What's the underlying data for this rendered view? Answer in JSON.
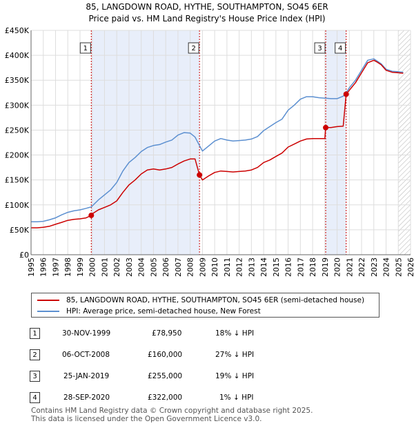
{
  "title_line1": "85, LANGDOWN ROAD, HYTHE, SOUTHAMPTON, SO45 6ER",
  "title_line2": "Price paid vs. HM Land Registry's House Price Index (HPI)",
  "legend": {
    "property_label": "85, LANGDOWN ROAD, HYTHE, SOUTHAMPTON, SO45 6ER (semi-detached house)",
    "hpi_label": "HPI: Average price, semi-detached house, New Forest"
  },
  "transactions": [
    {
      "num": "1",
      "date": "30-NOV-1999",
      "price": "£78,950",
      "hpi": "18% ↓ HPI"
    },
    {
      "num": "2",
      "date": "06-OCT-2008",
      "price": "£160,000",
      "hpi": "27% ↓ HPI"
    },
    {
      "num": "3",
      "date": "25-JAN-2019",
      "price": "£255,000",
      "hpi": "19% ↓ HPI"
    },
    {
      "num": "4",
      "date": "28-SEP-2020",
      "price": "£322,000",
      "hpi": "1% ↓ HPI"
    }
  ],
  "footer_line1": "Contains HM Land Registry data © Crown copyright and database right 2025.",
  "footer_line2": "This data is licensed under the Open Government Licence v3.0.",
  "colors": {
    "property": "#cc0000",
    "hpi": "#5b8fd0",
    "shade": "#e8eefa",
    "marker_line": "#cc0000",
    "hatch": "#cccccc"
  },
  "chart_data": {
    "type": "line",
    "xlim": [
      1995,
      2026
    ],
    "ylim": [
      0,
      450000
    ],
    "x_ticks": [
      1995,
      1996,
      1997,
      1998,
      1999,
      2000,
      2001,
      2002,
      2003,
      2004,
      2005,
      2006,
      2007,
      2008,
      2009,
      2010,
      2011,
      2012,
      2013,
      2014,
      2015,
      2016,
      2017,
      2018,
      2019,
      2020,
      2021,
      2022,
      2023,
      2024,
      2025,
      2026
    ],
    "y_ticks": [
      0,
      50000,
      100000,
      150000,
      200000,
      250000,
      300000,
      350000,
      400000,
      450000
    ],
    "y_tick_labels": [
      "£0",
      "£50K",
      "£100K",
      "£150K",
      "£200K",
      "£250K",
      "£300K",
      "£350K",
      "£400K",
      "£450K"
    ],
    "shaded_periods": [
      [
        1999.92,
        2008.76
      ],
      [
        2019.07,
        2020.74
      ]
    ],
    "hatch_from": 2025.0,
    "sales": [
      {
        "label": "1",
        "x": 1999.92,
        "y": 78950
      },
      {
        "label": "2",
        "x": 2008.76,
        "y": 160000
      },
      {
        "label": "3",
        "x": 2019.07,
        "y": 255000
      },
      {
        "label": "4",
        "x": 2020.74,
        "y": 322000
      }
    ],
    "series": [
      {
        "name": "HPI: Average price, semi-detached house, New Forest",
        "x": [
          1995,
          1995.5,
          1996,
          1996.5,
          1997,
          1997.5,
          1998,
          1998.5,
          1999,
          1999.5,
          1999.92,
          2000.5,
          2001,
          2001.5,
          2002,
          2002.5,
          2003,
          2003.5,
          2004,
          2004.5,
          2005,
          2005.5,
          2006,
          2006.5,
          2007,
          2007.5,
          2008,
          2008.4,
          2008.76,
          2009,
          2009.5,
          2010,
          2010.5,
          2011,
          2011.5,
          2012,
          2012.5,
          2013,
          2013.5,
          2014,
          2014.5,
          2015,
          2015.5,
          2016,
          2016.5,
          2017,
          2017.5,
          2018,
          2018.5,
          2019,
          2019.07,
          2019.5,
          2020,
          2020.5,
          2020.74,
          2021,
          2021.5,
          2022,
          2022.5,
          2023,
          2023.3,
          2023.6,
          2024,
          2024.5,
          2025,
          2025.4
        ],
        "values": [
          66000,
          66000,
          67000,
          70000,
          74000,
          80000,
          85000,
          88000,
          90000,
          93000,
          96000,
          110000,
          120000,
          130000,
          145000,
          168000,
          185000,
          195000,
          207000,
          215000,
          219000,
          221000,
          226000,
          230000,
          240000,
          245000,
          244000,
          236000,
          219000,
          208000,
          218000,
          228000,
          233000,
          230000,
          228000,
          229000,
          230000,
          232000,
          237000,
          249000,
          257000,
          265000,
          272000,
          290000,
          300000,
          312000,
          317000,
          317000,
          315000,
          314000,
          314000,
          313000,
          313000,
          318000,
          325000,
          335000,
          350000,
          370000,
          390000,
          393000,
          388000,
          383000,
          372000,
          368000,
          367000,
          366000
        ]
      },
      {
        "name": "85, LANGDOWN ROAD, HYTHE, SOUTHAMPTON, SO45 6ER (semi-detached house)",
        "x": [
          1995,
          1995.5,
          1996,
          1996.5,
          1997,
          1997.5,
          1998,
          1998.5,
          1999,
          1999.5,
          1999.92,
          2000,
          2000.5,
          2001,
          2001.5,
          2002,
          2002.5,
          2003,
          2003.5,
          2004,
          2004.5,
          2005,
          2005.5,
          2006,
          2006.5,
          2007,
          2007.5,
          2008,
          2008.4,
          2008.76,
          2009,
          2009.5,
          2010,
          2010.5,
          2011,
          2011.5,
          2012,
          2012.5,
          2013,
          2013.5,
          2014,
          2014.5,
          2015,
          2015.5,
          2016,
          2016.5,
          2017,
          2017.5,
          2018,
          2018.5,
          2019,
          2019.07,
          2019.5,
          2020,
          2020.5,
          2020.74,
          2021,
          2021.5,
          2022,
          2022.5,
          2023,
          2023.3,
          2023.6,
          2024,
          2024.5,
          2025,
          2025.4
        ],
        "values": [
          54000,
          54000,
          55000,
          57000,
          61000,
          65000,
          69000,
          71000,
          72000,
          74000,
          78950,
          82000,
          90000,
          95000,
          100000,
          108000,
          125000,
          140000,
          150000,
          162000,
          170000,
          172000,
          170000,
          172000,
          175000,
          182000,
          188000,
          192000,
          192000,
          160000,
          150000,
          158000,
          165000,
          168000,
          167000,
          166000,
          167000,
          168000,
          170000,
          175000,
          185000,
          190000,
          197000,
          204000,
          216000,
          222000,
          228000,
          232000,
          233000,
          233000,
          233000,
          255000,
          255000,
          257000,
          258000,
          322000,
          330000,
          345000,
          365000,
          385000,
          390000,
          386000,
          381000,
          370000,
          366000,
          365000,
          364000
        ]
      }
    ]
  }
}
